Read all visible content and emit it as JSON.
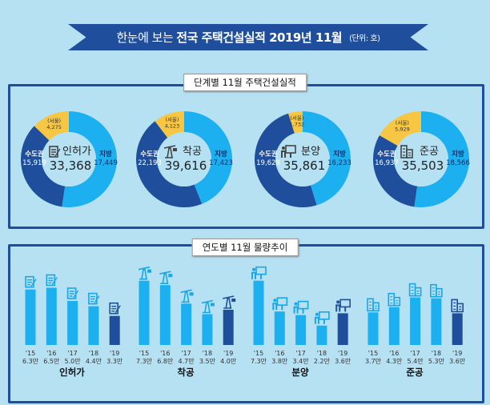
{
  "header": {
    "prefix": "한눈에 보는",
    "title": "전국 주택건설실적 2019년 11월",
    "unit": "(단위: 호)"
  },
  "section1_label": "단계별 11월 주택건설실적",
  "section2_label": "연도별 11월 물량추이",
  "colors": {
    "local": "#1cb0f0",
    "capital": "#1f4f9c",
    "seoul": "#f7c744",
    "background": "#b5e1f3"
  },
  "labels": {
    "capital": "수도권",
    "local": "지방",
    "seoul": "(서울)"
  },
  "chart_data": [
    {
      "type": "pie",
      "variant": "donut",
      "series": [
        {
          "name": "인허가",
          "icon": "permit-document-icon",
          "total": "33,368",
          "capital": 15919,
          "local": 17449,
          "seoul": 4275,
          "capital_text": "15,919",
          "local_text": "17,449",
          "seoul_text": "4,275"
        },
        {
          "name": "착공",
          "icon": "crane-icon",
          "total": "39,616",
          "capital": 22193,
          "local": 17423,
          "seoul": 4123,
          "capital_text": "22,193",
          "local_text": "17,423",
          "seoul_text": "4,123"
        },
        {
          "name": "분양",
          "icon": "presentation-board-icon",
          "total": "35,861",
          "capital": 19628,
          "local": 16233,
          "seoul": 1732,
          "capital_text": "19,628",
          "local_text": "16,233",
          "seoul_text": "1,732"
        },
        {
          "name": "준공",
          "icon": "buildings-icon",
          "total": "35,503",
          "capital": 16937,
          "local": 18566,
          "seoul": 5929,
          "capital_text": "16,937",
          "local_text": "18,566",
          "seoul_text": "5,929"
        }
      ]
    },
    {
      "type": "bar",
      "categories": [
        "'15",
        "'16",
        "'17",
        "'18",
        "'19"
      ],
      "unit": "만",
      "series": [
        {
          "name": "인허가",
          "values": [
            6.3,
            6.5,
            5.0,
            4.4,
            3.3
          ]
        },
        {
          "name": "착공",
          "values": [
            7.3,
            6.8,
            4.7,
            3.5,
            4.0
          ]
        },
        {
          "name": "분양",
          "values": [
            7.3,
            3.8,
            3.4,
            2.2,
            3.6
          ]
        },
        {
          "name": "준공",
          "values": [
            3.7,
            4.3,
            5.4,
            5.3,
            3.6
          ]
        }
      ]
    }
  ]
}
